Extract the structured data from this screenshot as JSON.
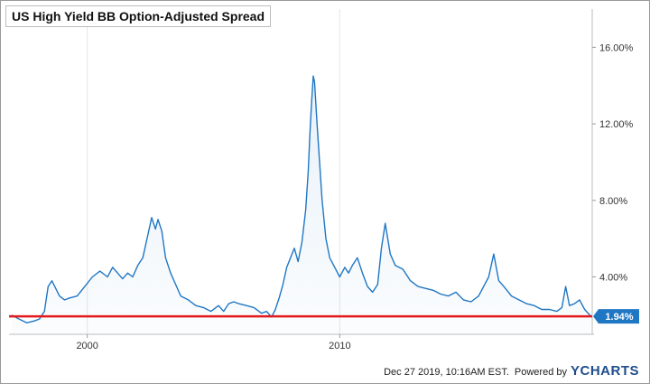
{
  "chart_data": {
    "type": "line",
    "title": "US High Yield BB Option-Adjusted Spread",
    "xlabel": "",
    "ylabel": "",
    "xlim": [
      1996.9,
      2020.0
    ],
    "ylim": [
      1.0,
      18.0
    ],
    "x_ticks": [
      {
        "value": 2000,
        "label": "2000"
      },
      {
        "value": 2010,
        "label": "2010"
      }
    ],
    "y_ticks": [
      {
        "value": 4,
        "label": "4.00%"
      },
      {
        "value": 8,
        "label": "8.00%"
      },
      {
        "value": 12,
        "label": "12.00%"
      },
      {
        "value": 16,
        "label": "16.00%"
      }
    ],
    "grid": "vertical",
    "series": [
      {
        "color": "#1f77c4",
        "x": [
          1997.0,
          1997.3,
          1997.6,
          1997.9,
          1998.1,
          1998.3,
          1998.45,
          1998.6,
          1998.75,
          1998.9,
          1999.1,
          1999.3,
          1999.6,
          1999.9,
          2000.2,
          2000.5,
          2000.8,
          2001.0,
          2001.2,
          2001.4,
          2001.6,
          2001.8,
          2002.0,
          2002.2,
          2002.4,
          2002.55,
          2002.7,
          2002.8,
          2002.95,
          2003.1,
          2003.3,
          2003.5,
          2003.7,
          2004.0,
          2004.3,
          2004.6,
          2004.9,
          2005.2,
          2005.4,
          2005.6,
          2005.8,
          2006.0,
          2006.3,
          2006.6,
          2006.9,
          2007.1,
          2007.3,
          2007.45,
          2007.6,
          2007.75,
          2007.9,
          2008.05,
          2008.2,
          2008.35,
          2008.5,
          2008.65,
          2008.75,
          2008.82,
          2008.88,
          2008.95,
          2009.0,
          2009.1,
          2009.2,
          2009.3,
          2009.45,
          2009.6,
          2009.8,
          2010.0,
          2010.2,
          2010.35,
          2010.5,
          2010.7,
          2010.9,
          2011.1,
          2011.3,
          2011.5,
          2011.65,
          2011.8,
          2012.0,
          2012.2,
          2012.5,
          2012.8,
          2013.1,
          2013.4,
          2013.7,
          2014.0,
          2014.3,
          2014.6,
          2014.9,
          2015.2,
          2015.5,
          2015.7,
          2015.9,
          2016.0,
          2016.1,
          2016.3,
          2016.5,
          2016.8,
          2017.1,
          2017.4,
          2017.7,
          2018.0,
          2018.3,
          2018.6,
          2018.8,
          2018.95,
          2019.1,
          2019.3,
          2019.5,
          2019.7,
          2019.95
        ],
        "values": [
          2.0,
          1.8,
          1.6,
          1.7,
          1.8,
          2.2,
          3.5,
          3.8,
          3.4,
          3.0,
          2.8,
          2.9,
          3.0,
          3.5,
          4.0,
          4.3,
          4.0,
          4.5,
          4.2,
          3.9,
          4.2,
          4.0,
          4.6,
          5.0,
          6.2,
          7.1,
          6.5,
          7.0,
          6.4,
          5.0,
          4.2,
          3.6,
          3.0,
          2.8,
          2.5,
          2.4,
          2.2,
          2.5,
          2.2,
          2.6,
          2.7,
          2.6,
          2.5,
          2.4,
          2.1,
          2.2,
          1.9,
          2.3,
          2.9,
          3.6,
          4.5,
          5.0,
          5.5,
          4.8,
          5.8,
          7.5,
          9.5,
          11.5,
          13.0,
          14.5,
          14.2,
          12.0,
          10.0,
          8.0,
          6.0,
          5.0,
          4.5,
          4.0,
          4.5,
          4.2,
          4.6,
          5.0,
          4.2,
          3.5,
          3.2,
          3.6,
          5.5,
          6.8,
          5.2,
          4.6,
          4.4,
          3.8,
          3.5,
          3.4,
          3.3,
          3.1,
          3.0,
          3.2,
          2.8,
          2.7,
          3.0,
          3.5,
          4.0,
          4.6,
          5.2,
          3.8,
          3.5,
          3.0,
          2.8,
          2.6,
          2.5,
          2.3,
          2.3,
          2.2,
          2.4,
          3.5,
          2.5,
          2.6,
          2.8,
          2.3,
          1.94
        ]
      }
    ],
    "reference_lines": [
      {
        "y": 1.94,
        "color": "#e41a1c"
      }
    ],
    "last_value": {
      "value": 1.94,
      "label": "1.94%",
      "color": "#1f77c4"
    }
  },
  "footer": {
    "timestamp": "Dec 27 2019, 10:16AM EST.",
    "powered_by": "Powered by",
    "brand": "YCHARTS"
  }
}
